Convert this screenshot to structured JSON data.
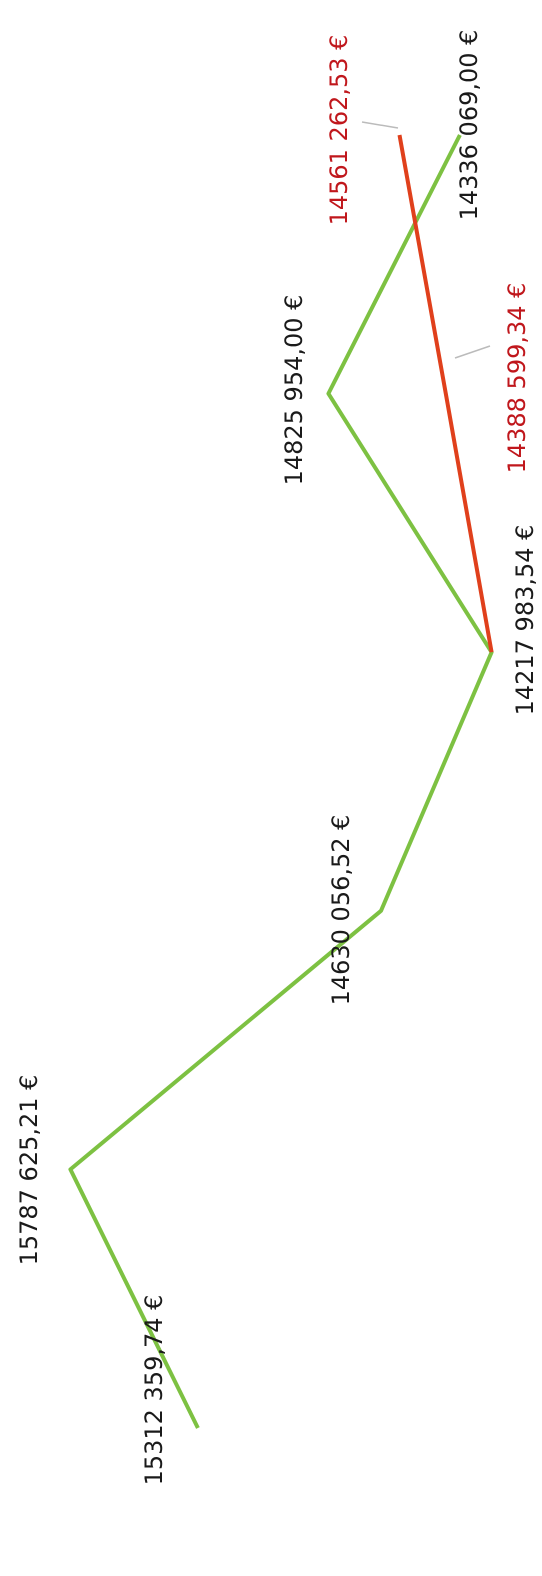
{
  "chart_data": {
    "type": "line",
    "orientation": "rotated",
    "ylim": [
      16050000,
      14030000
    ],
    "series": [
      {
        "name": null,
        "color": "#7dc142",
        "values": [
          15312359.74,
          15787625.21,
          14630056.52,
          14217983.54,
          14825954.0,
          14336069.0
        ],
        "value_labels": [
          "15312 359,74 €",
          "15787 625,21 €",
          "14630 056,52 €",
          "14217 983,54 €",
          "14825 954,00 €",
          "14336 069,00 €"
        ],
        "label_color": "#1a1a1a"
      },
      {
        "name": null,
        "color": "#e0401c",
        "values": [
          null,
          null,
          null,
          14217983.54,
          14388599.34,
          14561262.53
        ],
        "value_labels": [
          null,
          null,
          null,
          null,
          "14388 599,34 €",
          "14561 262,53 €"
        ],
        "label_color": "#c0171c"
      }
    ]
  }
}
